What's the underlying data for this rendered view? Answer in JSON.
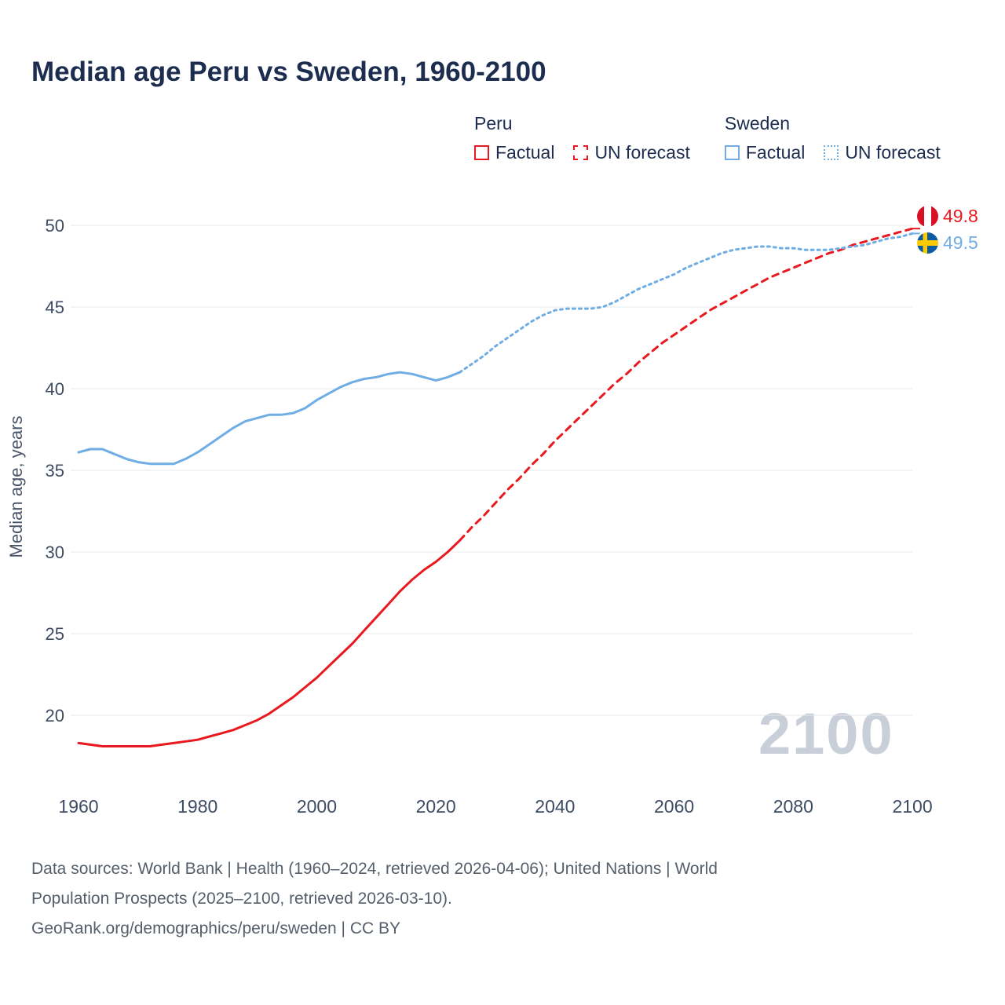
{
  "title": "Median age Peru vs Sweden, 1960-2100",
  "legend": {
    "groups": [
      {
        "name": "Peru",
        "color": "#e8191f",
        "items": [
          {
            "label": "Factual",
            "style": "solid"
          },
          {
            "label": "UN forecast",
            "style": "dashed"
          }
        ]
      },
      {
        "name": "Sweden",
        "color": "#6fade4",
        "items": [
          {
            "label": "Factual",
            "style": "solid"
          },
          {
            "label": "UN forecast",
            "style": "dotted"
          }
        ]
      }
    ]
  },
  "end_labels": [
    {
      "country": "Peru",
      "value": "49.8",
      "color": "#e8191f",
      "flag": "peru-flag"
    },
    {
      "country": "Sweden",
      "value": "49.5",
      "color": "#6fade4",
      "flag": "sweden-flag"
    }
  ],
  "watermark": "2100",
  "footer": {
    "lines": [
      "Data sources: World Bank | Health (1960–2024, retrieved 2026-04-06); United Nations | World",
      "Population Prospects (2025–2100, retrieved 2026-03-10).",
      "GeoRank.org/demographics/peru/sweden | CC BY"
    ]
  },
  "chart_data": {
    "type": "line",
    "title": "Median age Peru vs Sweden, 1960-2100",
    "xlabel": "",
    "ylabel": "Median age, years",
    "xlim": [
      1960,
      2100
    ],
    "ylim": [
      17,
      51
    ],
    "x_ticks": [
      1960,
      1980,
      2000,
      2020,
      2040,
      2060,
      2080,
      2100
    ],
    "y_ticks": [
      20,
      25,
      30,
      35,
      40,
      45,
      50
    ],
    "grid": "horizontal",
    "legend_position": "top-right",
    "series": [
      {
        "name": "Peru Factual",
        "color": "#e8191f",
        "dash": null,
        "points": [
          [
            1960,
            18.3
          ],
          [
            1962,
            18.2
          ],
          [
            1964,
            18.1
          ],
          [
            1966,
            18.1
          ],
          [
            1968,
            18.1
          ],
          [
            1970,
            18.1
          ],
          [
            1972,
            18.1
          ],
          [
            1974,
            18.2
          ],
          [
            1976,
            18.3
          ],
          [
            1978,
            18.4
          ],
          [
            1980,
            18.5
          ],
          [
            1982,
            18.7
          ],
          [
            1984,
            18.9
          ],
          [
            1986,
            19.1
          ],
          [
            1988,
            19.4
          ],
          [
            1990,
            19.7
          ],
          [
            1992,
            20.1
          ],
          [
            1994,
            20.6
          ],
          [
            1996,
            21.1
          ],
          [
            1998,
            21.7
          ],
          [
            2000,
            22.3
          ],
          [
            2002,
            23.0
          ],
          [
            2004,
            23.7
          ],
          [
            2006,
            24.4
          ],
          [
            2008,
            25.2
          ],
          [
            2010,
            26.0
          ],
          [
            2012,
            26.8
          ],
          [
            2014,
            27.6
          ],
          [
            2016,
            28.3
          ],
          [
            2018,
            28.9
          ],
          [
            2020,
            29.4
          ],
          [
            2022,
            30.0
          ],
          [
            2024,
            30.7
          ]
        ]
      },
      {
        "name": "Peru UN forecast",
        "color": "#e8191f",
        "dash": "8 7",
        "points": [
          [
            2024,
            30.7
          ],
          [
            2026,
            31.5
          ],
          [
            2028,
            32.2
          ],
          [
            2030,
            33.0
          ],
          [
            2032,
            33.8
          ],
          [
            2034,
            34.5
          ],
          [
            2036,
            35.3
          ],
          [
            2038,
            36.0
          ],
          [
            2040,
            36.8
          ],
          [
            2042,
            37.5
          ],
          [
            2044,
            38.2
          ],
          [
            2046,
            38.9
          ],
          [
            2048,
            39.6
          ],
          [
            2050,
            40.3
          ],
          [
            2052,
            40.9
          ],
          [
            2054,
            41.6
          ],
          [
            2056,
            42.2
          ],
          [
            2058,
            42.8
          ],
          [
            2060,
            43.3
          ],
          [
            2062,
            43.8
          ],
          [
            2064,
            44.3
          ],
          [
            2066,
            44.8
          ],
          [
            2068,
            45.2
          ],
          [
            2070,
            45.6
          ],
          [
            2072,
            46.0
          ],
          [
            2074,
            46.4
          ],
          [
            2076,
            46.8
          ],
          [
            2078,
            47.1
          ],
          [
            2080,
            47.4
          ],
          [
            2082,
            47.7
          ],
          [
            2084,
            48.0
          ],
          [
            2086,
            48.3
          ],
          [
            2088,
            48.5
          ],
          [
            2090,
            48.8
          ],
          [
            2092,
            49.0
          ],
          [
            2094,
            49.2
          ],
          [
            2096,
            49.4
          ],
          [
            2098,
            49.6
          ],
          [
            2100,
            49.8
          ]
        ]
      },
      {
        "name": "Sweden Factual",
        "color": "#6fade4",
        "dash": null,
        "points": [
          [
            1960,
            36.1
          ],
          [
            1962,
            36.3
          ],
          [
            1964,
            36.3
          ],
          [
            1966,
            36.0
          ],
          [
            1968,
            35.7
          ],
          [
            1970,
            35.5
          ],
          [
            1972,
            35.4
          ],
          [
            1974,
            35.4
          ],
          [
            1976,
            35.4
          ],
          [
            1978,
            35.7
          ],
          [
            1980,
            36.1
          ],
          [
            1982,
            36.6
          ],
          [
            1984,
            37.1
          ],
          [
            1986,
            37.6
          ],
          [
            1988,
            38.0
          ],
          [
            1990,
            38.2
          ],
          [
            1992,
            38.4
          ],
          [
            1994,
            38.4
          ],
          [
            1996,
            38.5
          ],
          [
            1998,
            38.8
          ],
          [
            2000,
            39.3
          ],
          [
            2002,
            39.7
          ],
          [
            2004,
            40.1
          ],
          [
            2006,
            40.4
          ],
          [
            2008,
            40.6
          ],
          [
            2010,
            40.7
          ],
          [
            2012,
            40.9
          ],
          [
            2014,
            41.0
          ],
          [
            2016,
            40.9
          ],
          [
            2018,
            40.7
          ],
          [
            2020,
            40.5
          ],
          [
            2022,
            40.7
          ],
          [
            2024,
            41.0
          ]
        ]
      },
      {
        "name": "Sweden UN forecast",
        "color": "#6fade4",
        "dash": "3 5",
        "points": [
          [
            2024,
            41.0
          ],
          [
            2026,
            41.5
          ],
          [
            2028,
            42.0
          ],
          [
            2030,
            42.6
          ],
          [
            2032,
            43.1
          ],
          [
            2034,
            43.6
          ],
          [
            2036,
            44.1
          ],
          [
            2038,
            44.5
          ],
          [
            2040,
            44.8
          ],
          [
            2042,
            44.9
          ],
          [
            2044,
            44.9
          ],
          [
            2046,
            44.9
          ],
          [
            2048,
            45.0
          ],
          [
            2050,
            45.3
          ],
          [
            2052,
            45.7
          ],
          [
            2054,
            46.1
          ],
          [
            2056,
            46.4
          ],
          [
            2058,
            46.7
          ],
          [
            2060,
            47.0
          ],
          [
            2062,
            47.4
          ],
          [
            2064,
            47.7
          ],
          [
            2066,
            48.0
          ],
          [
            2068,
            48.3
          ],
          [
            2070,
            48.5
          ],
          [
            2072,
            48.6
          ],
          [
            2074,
            48.7
          ],
          [
            2076,
            48.7
          ],
          [
            2078,
            48.6
          ],
          [
            2080,
            48.6
          ],
          [
            2082,
            48.5
          ],
          [
            2084,
            48.5
          ],
          [
            2086,
            48.5
          ],
          [
            2088,
            48.6
          ],
          [
            2090,
            48.7
          ],
          [
            2092,
            48.8
          ],
          [
            2094,
            49.0
          ],
          [
            2096,
            49.2
          ],
          [
            2098,
            49.3
          ],
          [
            2100,
            49.5
          ]
        ]
      }
    ]
  }
}
